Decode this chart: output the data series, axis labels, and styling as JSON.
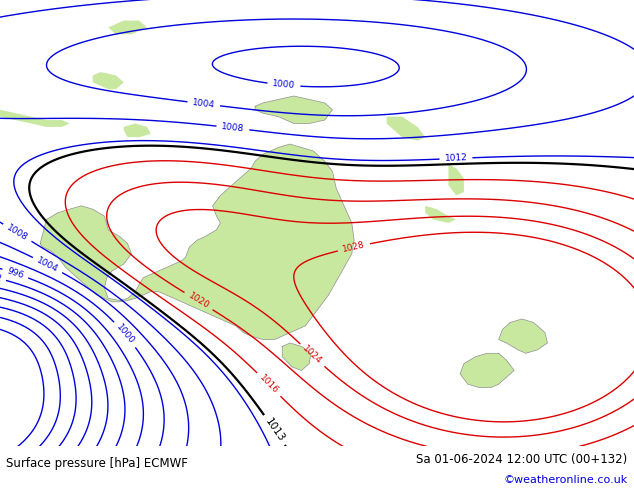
{
  "title_left": "Surface pressure [hPa] ECMWF",
  "title_right": "Sa 01-06-2024 12:00 UTC (00+132)",
  "copyright": "©weatheronline.co.uk",
  "land_color": "#c8e8a0",
  "ocean_color": "#c8d4df",
  "bottom_bar_color": "#ffffff",
  "blue": "#0000dd",
  "red": "#dd0000",
  "black": "#000000",
  "figsize": [
    6.34,
    4.9
  ],
  "dpi": 100,
  "lon_min": 108,
  "lon_max": 190,
  "lat_min": -55,
  "lat_max": 10
}
